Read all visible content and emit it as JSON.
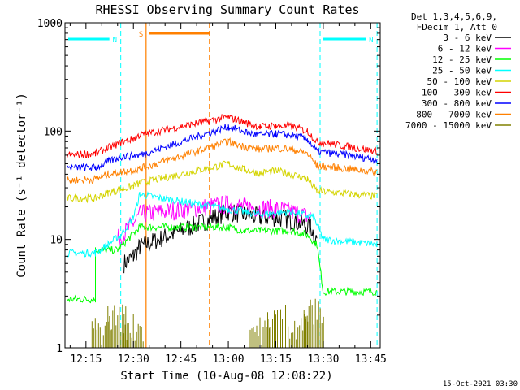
{
  "chart_data": {
    "type": "line",
    "title": "RHESSI Observing Summary Count Rates",
    "xlabel": "Start Time (10-Aug-08 12:08:22)",
    "ylabel": "Count Rate (s⁻¹ detector⁻¹)",
    "y_scale": "log",
    "ylim": [
      1,
      1000
    ],
    "xlim": [
      "12:08:22",
      "13:48:00"
    ],
    "x_ticks": [
      "12:15",
      "12:30",
      "12:45",
      "13:00",
      "13:15",
      "13:30",
      "13:45"
    ],
    "y_ticks": [
      "1",
      "10",
      "100",
      "1000"
    ],
    "legend_header": [
      "Det 1,3,4,5,6,9,",
      "FDecim 1, Att 0"
    ],
    "legend_position": "right",
    "timestamp": "15-Oct-2021 03:30",
    "gaps": [
      {
        "label": "N",
        "type": "night",
        "color": "#00ffff",
        "start": "12:08:22",
        "end": "12:26:00"
      },
      {
        "label": "S",
        "type": "saa",
        "color": "#ff8000",
        "start": "12:34:00",
        "end": "12:54:00"
      },
      {
        "label": "N",
        "type": "night",
        "color": "#00ffff",
        "start": "13:29:00",
        "end": "13:47:00"
      }
    ],
    "series": [
      {
        "name": "3 - 6 keV",
        "color": "#000000",
        "values": [
          {
            "t": "12:27",
            "y": 6
          },
          {
            "t": "12:30",
            "y": 7
          },
          {
            "t": "12:32",
            "y": 8.5
          },
          {
            "t": "13:00",
            "y": 18
          },
          {
            "t": "13:05",
            "y": 17
          },
          {
            "t": "13:10",
            "y": 16
          },
          {
            "t": "13:15",
            "y": 16
          },
          {
            "t": "13:20",
            "y": 15
          },
          {
            "t": "13:26",
            "y": 13
          },
          {
            "t": "13:28",
            "y": 10
          }
        ]
      },
      {
        "name": "6 - 12 keV",
        "color": "#ff00ff",
        "values": [
          {
            "t": "12:25",
            "y": 10
          },
          {
            "t": "12:30",
            "y": 14
          },
          {
            "t": "12:32",
            "y": 17
          },
          {
            "t": "13:00",
            "y": 21
          },
          {
            "t": "13:05",
            "y": 20
          },
          {
            "t": "13:15",
            "y": 19
          },
          {
            "t": "13:20",
            "y": 18
          },
          {
            "t": "13:26",
            "y": 16
          }
        ]
      },
      {
        "name": "12 - 25 keV",
        "color": "#00ff00",
        "values": [
          {
            "t": "12:09",
            "y": 2.8
          },
          {
            "t": "12:18",
            "y": 2.8
          },
          {
            "t": "12:18",
            "y": 8
          },
          {
            "t": "12:25",
            "y": 8
          },
          {
            "t": "12:32",
            "y": 13
          },
          {
            "t": "13:00",
            "y": 13
          },
          {
            "t": "13:05",
            "y": 12
          },
          {
            "t": "13:10",
            "y": 12
          },
          {
            "t": "13:20",
            "y": 12
          },
          {
            "t": "13:25",
            "y": 11
          },
          {
            "t": "13:28",
            "y": 9
          },
          {
            "t": "13:30",
            "y": 3.3
          },
          {
            "t": "13:47",
            "y": 3.3
          }
        ]
      },
      {
        "name": "25 - 50 keV",
        "color": "#00ffff",
        "values": [
          {
            "t": "12:09",
            "y": 7.5
          },
          {
            "t": "12:18",
            "y": 7.5
          },
          {
            "t": "12:22",
            "y": 9
          },
          {
            "t": "12:26",
            "y": 11
          },
          {
            "t": "12:30",
            "y": 16
          },
          {
            "t": "12:32",
            "y": 26
          },
          {
            "t": "13:00",
            "y": 19
          },
          {
            "t": "13:10",
            "y": 17
          },
          {
            "t": "13:20",
            "y": 18
          },
          {
            "t": "13:27",
            "y": 16
          },
          {
            "t": "13:30",
            "y": 10
          },
          {
            "t": "13:47",
            "y": 9
          }
        ]
      },
      {
        "name": "50 - 100 keV",
        "color": "#d4d400",
        "values": [
          {
            "t": "12:09",
            "y": 24
          },
          {
            "t": "12:18",
            "y": 24
          },
          {
            "t": "12:22",
            "y": 27
          },
          {
            "t": "12:26",
            "y": 29
          },
          {
            "t": "12:30",
            "y": 31
          },
          {
            "t": "12:32",
            "y": 33
          },
          {
            "t": "13:00",
            "y": 50
          },
          {
            "t": "13:05",
            "y": 44
          },
          {
            "t": "13:10",
            "y": 41
          },
          {
            "t": "13:15",
            "y": 43
          },
          {
            "t": "13:20",
            "y": 40
          },
          {
            "t": "13:25",
            "y": 36
          },
          {
            "t": "13:28",
            "y": 28
          },
          {
            "t": "13:47",
            "y": 25
          }
        ]
      },
      {
        "name": "100 - 300 keV",
        "color": "#ff0000",
        "values": [
          {
            "t": "12:09",
            "y": 60
          },
          {
            "t": "12:18",
            "y": 62
          },
          {
            "t": "12:22",
            "y": 70
          },
          {
            "t": "12:26",
            "y": 78
          },
          {
            "t": "12:30",
            "y": 85
          },
          {
            "t": "12:32",
            "y": 92
          },
          {
            "t": "13:00",
            "y": 135
          },
          {
            "t": "13:05",
            "y": 120
          },
          {
            "t": "13:10",
            "y": 110
          },
          {
            "t": "13:15",
            "y": 112
          },
          {
            "t": "13:20",
            "y": 110
          },
          {
            "t": "13:25",
            "y": 100
          },
          {
            "t": "13:28",
            "y": 80
          },
          {
            "t": "13:47",
            "y": 65
          }
        ]
      },
      {
        "name": "300 - 800 keV",
        "color": "#0000ff",
        "values": [
          {
            "t": "12:09",
            "y": 46
          },
          {
            "t": "12:18",
            "y": 46
          },
          {
            "t": "12:22",
            "y": 52
          },
          {
            "t": "12:26",
            "y": 58
          },
          {
            "t": "12:32",
            "y": 60
          },
          {
            "t": "13:00",
            "y": 110
          },
          {
            "t": "13:05",
            "y": 98
          },
          {
            "t": "13:10",
            "y": 92
          },
          {
            "t": "13:15",
            "y": 94
          },
          {
            "t": "13:20",
            "y": 92
          },
          {
            "t": "13:25",
            "y": 84
          },
          {
            "t": "13:28",
            "y": 65
          },
          {
            "t": "13:47",
            "y": 55
          }
        ]
      },
      {
        "name": "800 - 7000 keV",
        "color": "#ff8000",
        "values": [
          {
            "t": "12:09",
            "y": 35
          },
          {
            "t": "12:18",
            "y": 36
          },
          {
            "t": "12:22",
            "y": 40
          },
          {
            "t": "12:26",
            "y": 42
          },
          {
            "t": "12:32",
            "y": 45
          },
          {
            "t": "13:00",
            "y": 80
          },
          {
            "t": "13:05",
            "y": 72
          },
          {
            "t": "13:10",
            "y": 68
          },
          {
            "t": "13:15",
            "y": 70
          },
          {
            "t": "13:20",
            "y": 68
          },
          {
            "t": "13:25",
            "y": 62
          },
          {
            "t": "13:28",
            "y": 48
          },
          {
            "t": "13:47",
            "y": 42
          }
        ]
      },
      {
        "name": "7000 - 15000 keV",
        "color": "#808000",
        "values": [
          {
            "t": "12:20",
            "y": 1.5
          },
          {
            "t": "12:25",
            "y": 2
          },
          {
            "t": "12:30",
            "y": 1.6
          },
          {
            "t": "13:10",
            "y": 1.5
          },
          {
            "t": "13:15",
            "y": 2
          },
          {
            "t": "13:22",
            "y": 1.7
          },
          {
            "t": "13:27",
            "y": 2.2
          }
        ]
      }
    ]
  }
}
